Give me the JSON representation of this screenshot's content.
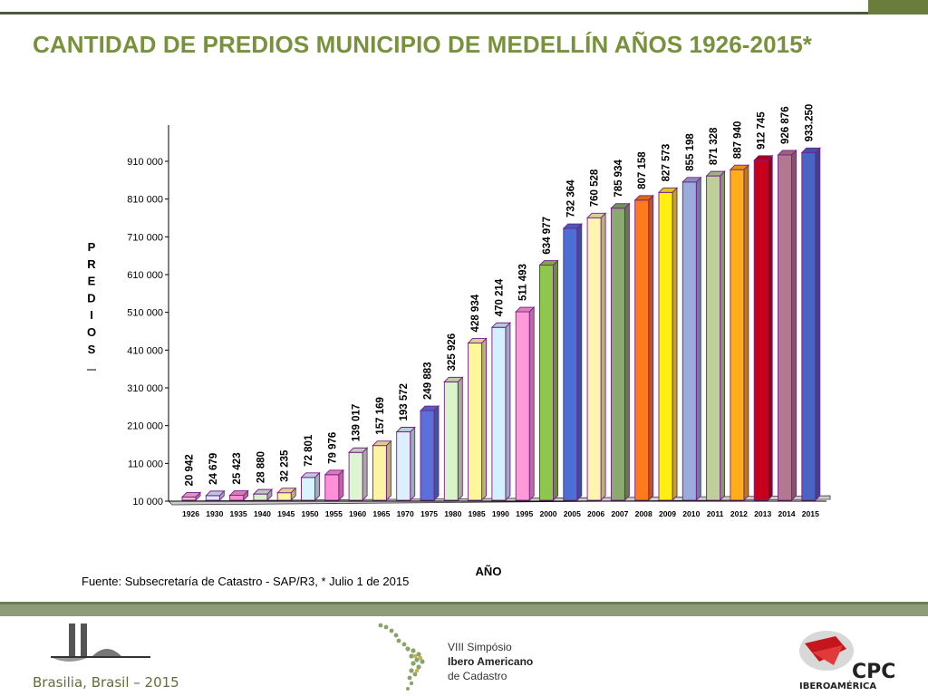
{
  "title": "CANTIDAD DE PREDIOS MUNICIPIO DE MEDELLÍN AÑOS 1926-2015*",
  "source_note": "Fuente: Subsecretaría de Catastro - SAP/R3,  * Julio 1 de 2015",
  "footer": {
    "location": "Brasilia, Brasil – 2015",
    "simposio_line1": "VIII Simpósio",
    "simposio_line2": "Ibero Americano",
    "simposio_line3": "de Cadastro",
    "cpc_logo_text": "CPC",
    "cpc_sub_text": "IBEROAMÉRICA"
  },
  "chart_data": {
    "type": "bar",
    "title": "CANTIDAD DE PREDIOS MUNICIPIO DE MEDELLÍN AÑOS 1926-2015*",
    "xlabel": "AÑO",
    "ylabel": "PREDIOS",
    "ylim": [
      10000,
      1010000
    ],
    "yticks": [
      10000,
      110000,
      210000,
      310000,
      410000,
      510000,
      610000,
      710000,
      810000,
      910000
    ],
    "ytick_labels": [
      "10 000",
      "110 000",
      "210 000",
      "310 000",
      "410 000",
      "510 000",
      "610 000",
      "710 000",
      "810 000",
      "910 000"
    ],
    "categories": [
      "1926",
      "1930",
      "1935",
      "1940",
      "1945",
      "1950",
      "1955",
      "1960",
      "1965",
      "1970",
      "1975",
      "1980",
      "1985",
      "1990",
      "1995",
      "2000",
      "2005",
      "2006",
      "2007",
      "2008",
      "2009",
      "2010",
      "2011",
      "2012",
      "2013",
      "2014",
      "2015"
    ],
    "values": [
      20942,
      24679,
      25423,
      28880,
      32235,
      72801,
      79976,
      139017,
      157169,
      193572,
      249883,
      325926,
      428934,
      470214,
      511493,
      634977,
      732364,
      760528,
      785934,
      807158,
      827573,
      855198,
      871328,
      887940,
      912745,
      926876,
      933250
    ],
    "value_labels": [
      "20 942",
      "24 679",
      "25 423",
      "28 880",
      "32 235",
      "72 801",
      "79 976",
      "139 017",
      "157 169",
      "193 572",
      "249 883",
      "325 926",
      "428 934",
      "470 214",
      "511 493",
      "634 977",
      "732 364",
      "760 528",
      "785 934",
      "807 158",
      "827 573",
      "855 198",
      "871 328",
      "887 940",
      "912 745",
      "926 876",
      "933.250"
    ],
    "bar_colors": [
      "#f9b4d8",
      "#dcecfc",
      "#ff8fd0",
      "#d8f0d0",
      "#fff7a0",
      "#d8f4ff",
      "#ff90d8",
      "#ddf5d0",
      "#fff4a4",
      "#dcefff",
      "#5a70d8",
      "#d8f4c8",
      "#fff79a",
      "#d4f0ff",
      "#ff99d8",
      "#8ec84a",
      "#4a70d6",
      "#fff5b0",
      "#8aaa70",
      "#ff7a1a",
      "#ffee10",
      "#9aacdc",
      "#bfcf9a",
      "#ffae1a",
      "#c8001a",
      "#b37890",
      "#4a64c4"
    ],
    "grid": false,
    "legend": "none"
  }
}
